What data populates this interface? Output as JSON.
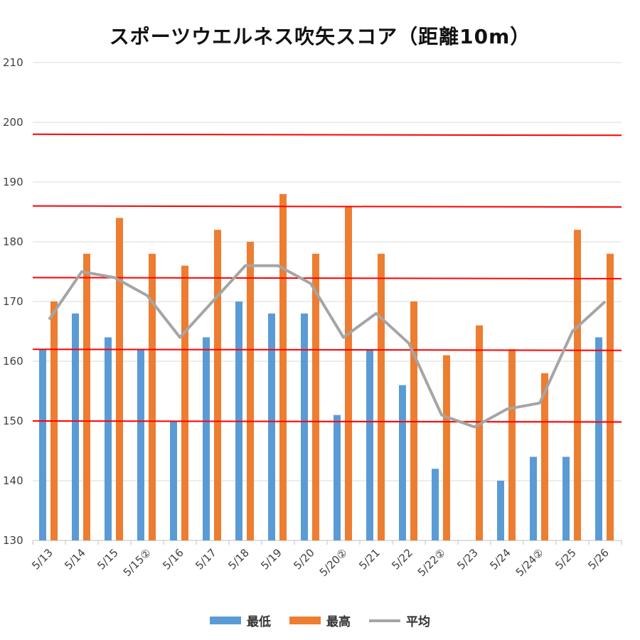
{
  "chart_data": {
    "type": "bar",
    "title": "スポーツウエルネス吹矢スコア（距離10m）",
    "categories": [
      "5/13",
      "5/14",
      "5/15",
      "5/15②",
      "5/16",
      "5/17",
      "5/18",
      "5/19",
      "5/20",
      "5/20②",
      "5/21",
      "5/22",
      "5/22②",
      "5/23",
      "5/24",
      "5/24②",
      "5/25",
      "5/26"
    ],
    "series": [
      {
        "name": "最低",
        "kind": "bar",
        "color": "#5B9BD5",
        "values": [
          162,
          168,
          164,
          162,
          150,
          164,
          170,
          168,
          168,
          151,
          162,
          156,
          142,
          null,
          140,
          144,
          144,
          164
        ]
      },
      {
        "name": "最高",
        "kind": "bar",
        "color": "#ED7D31",
        "values": [
          170,
          178,
          184,
          178,
          176,
          182,
          180,
          188,
          178,
          186,
          178,
          170,
          161,
          166,
          162,
          158,
          182,
          178
        ]
      },
      {
        "name": "平均",
        "kind": "line",
        "color": "#A5A5A5",
        "values": [
          167,
          175,
          174,
          171,
          164,
          170,
          176,
          176,
          173,
          164,
          168,
          163,
          151,
          149,
          152,
          153,
          165,
          170
        ]
      }
    ],
    "reference_lines": {
      "color": "#FF0000",
      "values": [
        150,
        162,
        174,
        186,
        198
      ]
    },
    "ylim": [
      130,
      210
    ],
    "yticks": [
      130,
      140,
      150,
      160,
      170,
      180,
      190,
      200,
      210
    ],
    "grid": true,
    "legend_position": "bottom"
  }
}
